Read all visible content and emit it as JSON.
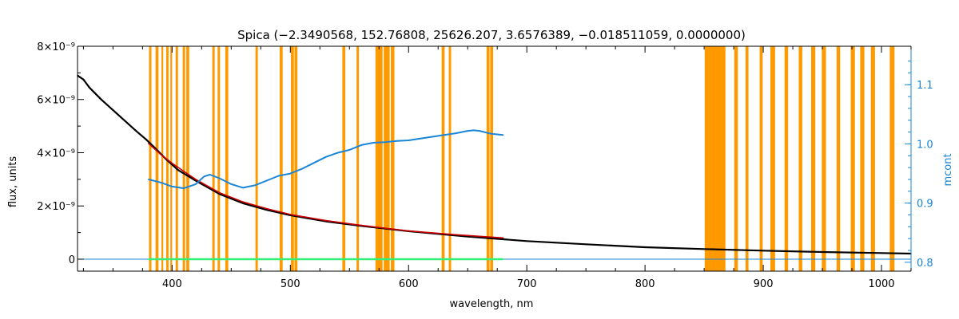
{
  "chart_data": {
    "type": "line",
    "title": "Spica   (−2.3490568, 152.76808, 25626.207, 3.6576389, −0.018511059, 0.0000000)",
    "xlabel": "wavelength, nm",
    "ylabel": "flux, units",
    "y2label": "mcont",
    "xlim": [
      320,
      1025
    ],
    "ylim": [
      -4.5e-10,
      8e-09
    ],
    "y2lim": [
      0.785,
      1.165
    ],
    "xticks": [
      400,
      500,
      600,
      700,
      800,
      900,
      1000
    ],
    "xtick_labels": [
      "400",
      "500",
      "600",
      "700",
      "800",
      "900",
      "1000"
    ],
    "yticks": [
      0,
      2e-09,
      4e-09,
      6e-09,
      8e-09
    ],
    "ytick_labels": [
      "0",
      "2×10⁻⁹",
      "4×10⁻⁹",
      "6×10⁻⁹",
      "8×10⁻⁹"
    ],
    "y2ticks": [
      0.8,
      0.9,
      1.0,
      1.1
    ],
    "y2tick_labels": [
      "0.8",
      "0.9",
      "1.0",
      "1.1"
    ],
    "colors": {
      "observed": "#000000",
      "model": "#cc0000",
      "mcont": "#1a85d6",
      "residual": "#33ee77",
      "masked": "#ff9900",
      "axis_right": "#1a85d6"
    },
    "masked_regions": [
      [
        380.5,
        382.5
      ],
      [
        386,
        388.5
      ],
      [
        391,
        392.5
      ],
      [
        395,
        397
      ],
      [
        398.5,
        400
      ],
      [
        403,
        405
      ],
      [
        409,
        411
      ],
      [
        412,
        414.5
      ],
      [
        434,
        436
      ],
      [
        438.5,
        440.5
      ],
      [
        445,
        447.5
      ],
      [
        470.5,
        472.5
      ],
      [
        491,
        493.5
      ],
      [
        500.5,
        503
      ],
      [
        503.5,
        506
      ],
      [
        544,
        546.5
      ],
      [
        556,
        558
      ],
      [
        572,
        578
      ],
      [
        579,
        584
      ],
      [
        585,
        588
      ],
      [
        628,
        630.5
      ],
      [
        634,
        636
      ],
      [
        666,
        668.5
      ],
      [
        669,
        671.5
      ],
      [
        850.5,
        868
      ],
      [
        875.5,
        878.5
      ],
      [
        885,
        887.5
      ],
      [
        897,
        899.5
      ],
      [
        906,
        910
      ],
      [
        918,
        921
      ],
      [
        930,
        933
      ],
      [
        940.5,
        944
      ],
      [
        949.5,
        953
      ],
      [
        962,
        965
      ],
      [
        974,
        977.5
      ],
      [
        982,
        985.5
      ],
      [
        991,
        994.5
      ],
      [
        1007,
        1011
      ]
    ],
    "series": [
      {
        "name": "observed",
        "axis": "left",
        "x": [
          320,
          325,
          330,
          340,
          350,
          360,
          370,
          378,
          385,
          395,
          405,
          420,
          440,
          460,
          480,
          500,
          530,
          560,
          600,
          650,
          700,
          750,
          800,
          850,
          900,
          950,
          1000,
          1025
        ],
        "y": [
          6.9e-09,
          6.75e-09,
          6.45e-09,
          6e-09,
          5.6e-09,
          5.2e-09,
          4.8e-09,
          4.5e-09,
          4.2e-09,
          3.75e-09,
          3.35e-09,
          2.95e-09,
          2.45e-09,
          2.1e-09,
          1.85e-09,
          1.65e-09,
          1.42e-09,
          1.25e-09,
          1.05e-09,
          8.5e-10,
          6.8e-10,
          5.6e-10,
          4.5e-10,
          3.8e-10,
          3.2e-10,
          2.7e-10,
          2.3e-10,
          2.1e-10
        ]
      },
      {
        "name": "model",
        "axis": "left",
        "x": [
          380,
          390,
          400,
          410,
          420,
          440,
          460,
          480,
          500,
          530,
          560,
          600,
          640,
          680
        ],
        "y": [
          4.35e-09,
          3.95e-09,
          3.6e-09,
          3.3e-09,
          3e-09,
          2.5e-09,
          2.15e-09,
          1.9e-09,
          1.68e-09,
          1.45e-09,
          1.27e-09,
          1.06e-09,
          9.2e-10,
          8e-10
        ]
      },
      {
        "name": "mcont",
        "axis": "right",
        "x": [
          380,
          390,
          400,
          410,
          420,
          427,
          432,
          440,
          450,
          460,
          470,
          480,
          490,
          500,
          510,
          520,
          530,
          540,
          550,
          560,
          570,
          580,
          590,
          600,
          610,
          620,
          630,
          640,
          650,
          655,
          660,
          670,
          680
        ],
        "y": [
          0.94,
          0.935,
          0.928,
          0.925,
          0.932,
          0.945,
          0.948,
          0.942,
          0.932,
          0.926,
          0.93,
          0.938,
          0.946,
          0.95,
          0.958,
          0.968,
          0.978,
          0.985,
          0.99,
          0.998,
          1.002,
          1.003,
          1.005,
          1.006,
          1.009,
          1.012,
          1.015,
          1.018,
          1.022,
          1.023,
          1.022,
          1.017,
          1.015
        ]
      },
      {
        "name": "residual",
        "axis": "left",
        "x": [
          380,
          390,
          400,
          410,
          420,
          440,
          460,
          480,
          500,
          530,
          560,
          600,
          640,
          680
        ],
        "y": [
          0.0,
          0.0,
          0.0,
          0.0,
          0.0,
          0.0,
          0.0,
          0.0,
          0.0,
          0.0,
          0.0,
          0.0,
          0.0,
          0.0
        ]
      }
    ]
  }
}
